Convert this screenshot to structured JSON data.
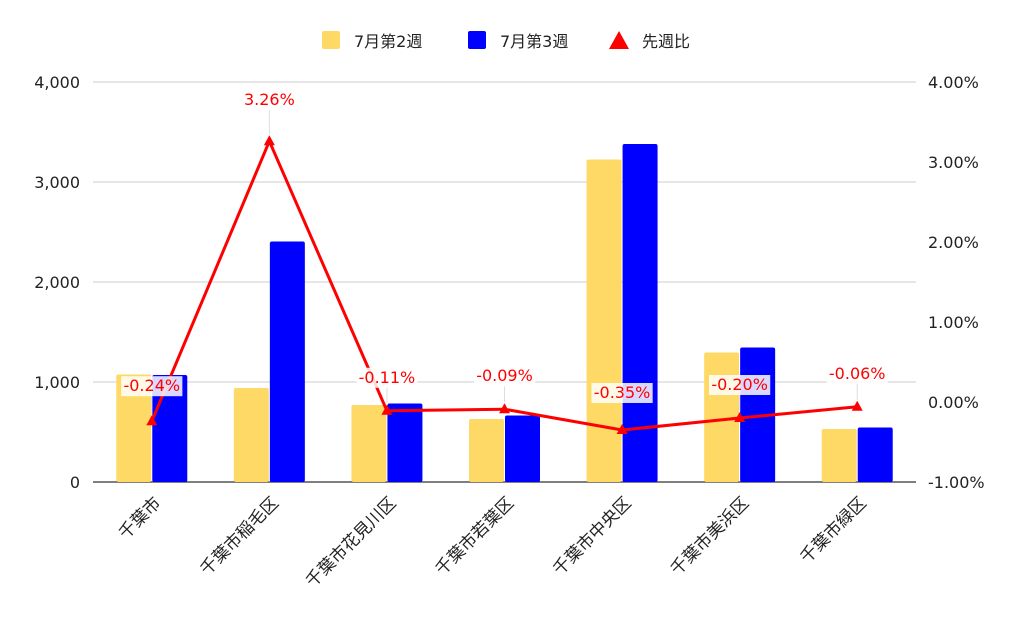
{
  "chart_data": {
    "type": "bar",
    "categories": [
      "千葉市",
      "千葉市稲毛区",
      "千葉市花見川区",
      "千葉市若葉区",
      "千葉市中央区",
      "千葉市美浜区",
      "千葉市緑区"
    ],
    "series": [
      {
        "name": "7月第2週",
        "type": "bar",
        "axis": "left",
        "color": "#FFD966",
        "values": [
          1075,
          940,
          770,
          630,
          3225,
          1295,
          530
        ]
      },
      {
        "name": "7月第3週",
        "type": "bar",
        "axis": "left",
        "color": "#0000FF",
        "values": [
          1070,
          2405,
          785,
          665,
          3380,
          1345,
          545
        ]
      },
      {
        "name": "先週比",
        "type": "line",
        "axis": "right",
        "color": "#FF0000",
        "values": [
          -0.24,
          3.26,
          -0.11,
          -0.09,
          -0.35,
          -0.2,
          -0.06
        ],
        "data_labels": [
          "-0.24%",
          "3.26%",
          "-0.11%",
          "-0.09%",
          "-0.35%",
          "-0.20%",
          "-0.06%"
        ]
      }
    ],
    "left_axis": {
      "ylim": [
        0,
        4000
      ],
      "ticks": [
        "0",
        "1,000",
        "2,000",
        "3,000",
        "4,000"
      ]
    },
    "right_axis": {
      "ylim": [
        -1,
        4
      ],
      "ticks": [
        "-1.00%",
        "0.00%",
        "1.00%",
        "2.00%",
        "3.00%",
        "4.00%"
      ]
    },
    "legend_position": "top",
    "grid": true
  }
}
